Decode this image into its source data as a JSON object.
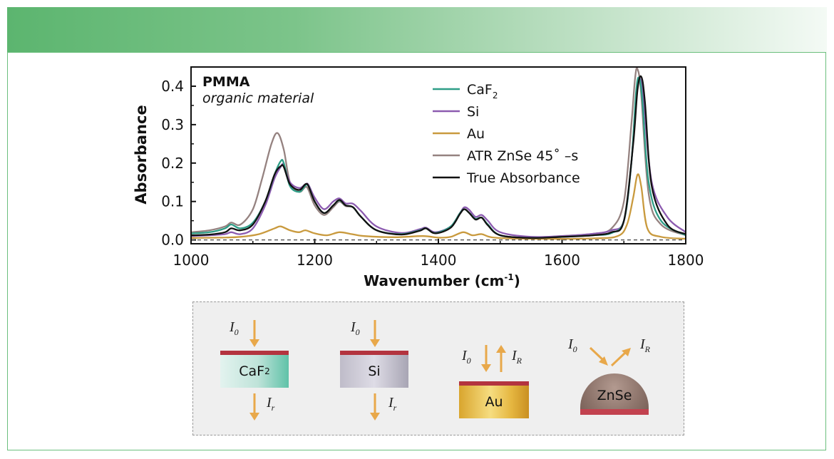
{
  "chart_data": {
    "type": "line",
    "title": "PMMA",
    "subtitle": "organic material",
    "xlabel": "Wavenumber (cm-1)",
    "xlabel_main": "Wavenumber (cm",
    "xlabel_sup": "-1",
    "xlabel_close": ")",
    "ylabel": "Absorbance",
    "xlim": [
      1000,
      1800
    ],
    "ylim": [
      -0.01,
      0.45
    ],
    "xticks": [
      1000,
      1200,
      1400,
      1600,
      1800
    ],
    "yticks": [
      0.0,
      0.1,
      0.2,
      0.3,
      0.4
    ],
    "ytick_labels": [
      "0.0",
      "0.1",
      "0.2",
      "0.3",
      "0.4"
    ],
    "baseline": 0.0,
    "legend_position": "top-right",
    "series": [
      {
        "name": "CaF2",
        "label_main": "CaF",
        "label_sub": "2",
        "color": "#2e9e87",
        "x": [
          1000,
          1030,
          1055,
          1065,
          1080,
          1100,
          1120,
          1135,
          1145,
          1150,
          1160,
          1175,
          1185,
          1190,
          1200,
          1215,
          1230,
          1240,
          1250,
          1262,
          1275,
          1300,
          1340,
          1370,
          1380,
          1395,
          1420,
          1435,
          1442,
          1450,
          1460,
          1470,
          1480,
          1500,
          1550,
          1600,
          1650,
          1680,
          1700,
          1712,
          1720,
          1725,
          1730,
          1740,
          1760,
          1800
        ],
        "y": [
          0.017,
          0.02,
          0.03,
          0.04,
          0.03,
          0.045,
          0.1,
          0.17,
          0.205,
          0.2,
          0.14,
          0.125,
          0.142,
          0.14,
          0.1,
          0.07,
          0.09,
          0.103,
          0.09,
          0.085,
          0.06,
          0.025,
          0.015,
          0.025,
          0.03,
          0.018,
          0.035,
          0.07,
          0.08,
          0.07,
          0.055,
          0.058,
          0.04,
          0.012,
          0.005,
          0.008,
          0.012,
          0.018,
          0.05,
          0.2,
          0.39,
          0.42,
          0.36,
          0.15,
          0.05,
          0.012
        ]
      },
      {
        "name": "Si",
        "label_main": "Si",
        "label_sub": "",
        "color": "#8c5bb0",
        "x": [
          1000,
          1030,
          1055,
          1065,
          1080,
          1100,
          1120,
          1135,
          1145,
          1150,
          1160,
          1175,
          1185,
          1190,
          1200,
          1215,
          1230,
          1240,
          1250,
          1262,
          1275,
          1300,
          1340,
          1370,
          1380,
          1395,
          1420,
          1435,
          1442,
          1450,
          1460,
          1470,
          1480,
          1500,
          1550,
          1600,
          1650,
          1680,
          1700,
          1712,
          1720,
          1726,
          1732,
          1745,
          1770,
          1800
        ],
        "y": [
          0.01,
          0.012,
          0.015,
          0.02,
          0.015,
          0.03,
          0.09,
          0.16,
          0.19,
          0.195,
          0.15,
          0.135,
          0.145,
          0.143,
          0.11,
          0.08,
          0.1,
          0.108,
          0.095,
          0.094,
          0.075,
          0.035,
          0.018,
          0.028,
          0.032,
          0.02,
          0.035,
          0.07,
          0.085,
          0.078,
          0.06,
          0.065,
          0.05,
          0.02,
          0.008,
          0.01,
          0.016,
          0.025,
          0.05,
          0.2,
          0.38,
          0.42,
          0.36,
          0.15,
          0.06,
          0.02
        ]
      },
      {
        "name": "Au",
        "label_main": "Au",
        "label_sub": "",
        "color": "#c99a3e",
        "x": [
          1000,
          1050,
          1080,
          1110,
          1135,
          1145,
          1160,
          1175,
          1185,
          1200,
          1220,
          1240,
          1260,
          1280,
          1330,
          1375,
          1400,
          1420,
          1440,
          1455,
          1470,
          1490,
          1550,
          1650,
          1690,
          1705,
          1715,
          1722,
          1728,
          1738,
          1760,
          1800
        ],
        "y": [
          0.005,
          0.006,
          0.008,
          0.015,
          0.03,
          0.035,
          0.025,
          0.02,
          0.025,
          0.017,
          0.012,
          0.02,
          0.015,
          0.01,
          0.007,
          0.01,
          0.006,
          0.008,
          0.02,
          0.012,
          0.015,
          0.006,
          0.003,
          0.004,
          0.01,
          0.04,
          0.11,
          0.17,
          0.14,
          0.03,
          0.008,
          0.003
        ]
      },
      {
        "name": "ATR ZnSe 45° –s",
        "label_main": "ATR ZnSe 45˚ –s",
        "label_sub": "",
        "color": "#958280",
        "x": [
          1000,
          1030,
          1055,
          1065,
          1080,
          1100,
          1115,
          1130,
          1140,
          1150,
          1160,
          1175,
          1185,
          1190,
          1200,
          1215,
          1230,
          1240,
          1250,
          1262,
          1275,
          1300,
          1340,
          1370,
          1380,
          1395,
          1420,
          1435,
          1442,
          1450,
          1460,
          1470,
          1480,
          1500,
          1550,
          1600,
          1650,
          1680,
          1700,
          1712,
          1718,
          1722,
          1728,
          1740,
          1760,
          1800
        ],
        "y": [
          0.02,
          0.025,
          0.035,
          0.045,
          0.04,
          0.08,
          0.16,
          0.25,
          0.278,
          0.235,
          0.15,
          0.125,
          0.138,
          0.13,
          0.09,
          0.065,
          0.085,
          0.1,
          0.088,
          0.085,
          0.06,
          0.025,
          0.015,
          0.025,
          0.03,
          0.018,
          0.035,
          0.07,
          0.08,
          0.07,
          0.055,
          0.058,
          0.04,
          0.012,
          0.006,
          0.01,
          0.016,
          0.03,
          0.1,
          0.3,
          0.42,
          0.445,
          0.38,
          0.12,
          0.04,
          0.012
        ]
      },
      {
        "name": "True Absorbance",
        "label_main": "True Absorbance",
        "label_sub": "",
        "color": "#111111",
        "x": [
          1000,
          1030,
          1055,
          1065,
          1080,
          1100,
          1120,
          1135,
          1145,
          1150,
          1160,
          1175,
          1185,
          1190,
          1200,
          1215,
          1230,
          1240,
          1250,
          1262,
          1275,
          1300,
          1340,
          1370,
          1380,
          1395,
          1420,
          1435,
          1442,
          1450,
          1460,
          1470,
          1480,
          1500,
          1550,
          1600,
          1650,
          1680,
          1700,
          1715,
          1722,
          1728,
          1734,
          1745,
          1770,
          1800
        ],
        "y": [
          0.012,
          0.014,
          0.02,
          0.03,
          0.025,
          0.04,
          0.1,
          0.17,
          0.192,
          0.19,
          0.145,
          0.13,
          0.145,
          0.14,
          0.1,
          0.07,
          0.09,
          0.104,
          0.09,
          0.085,
          0.06,
          0.025,
          0.014,
          0.024,
          0.03,
          0.017,
          0.032,
          0.068,
          0.08,
          0.07,
          0.053,
          0.058,
          0.038,
          0.012,
          0.005,
          0.008,
          0.012,
          0.02,
          0.05,
          0.25,
          0.39,
          0.425,
          0.36,
          0.14,
          0.04,
          0.015
        ]
      }
    ]
  },
  "diagram": {
    "incident_symbol": "I",
    "incident_sub": "0",
    "transmitted_sub": "r",
    "reflected_sub": "R",
    "samples": [
      {
        "name": "CaF",
        "sub": "2"
      },
      {
        "name": "Si",
        "sub": ""
      },
      {
        "name": "Au",
        "sub": ""
      },
      {
        "name": "ZnSe",
        "sub": ""
      }
    ]
  }
}
